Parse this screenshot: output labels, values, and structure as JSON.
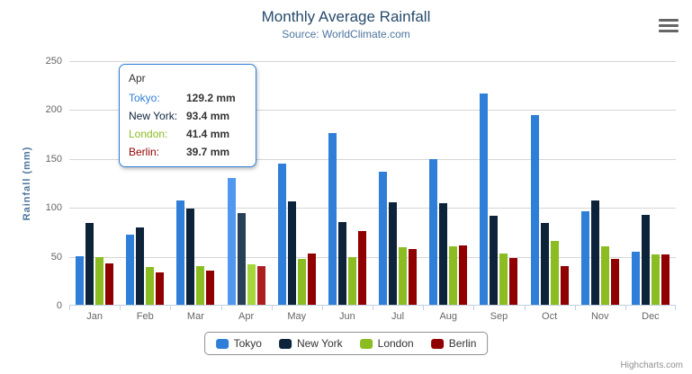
{
  "chart_data": {
    "type": "bar",
    "orientation": "vertical",
    "title": "Monthly Average Rainfall",
    "subtitle": "Source: WorldClimate.com",
    "categories": [
      "Jan",
      "Feb",
      "Mar",
      "Apr",
      "May",
      "Jun",
      "Jul",
      "Aug",
      "Sep",
      "Oct",
      "Nov",
      "Dec"
    ],
    "series": [
      {
        "name": "Tokyo",
        "color": "#2f7ed8",
        "hover_color": "#4f97ef",
        "values": [
          49.9,
          71.5,
          106.4,
          129.2,
          144.0,
          176.0,
          135.6,
          148.5,
          216.4,
          194.1,
          95.6,
          54.4
        ]
      },
      {
        "name": "New York",
        "color": "#0d233a",
        "hover_color": "#273f57",
        "values": [
          83.6,
          78.8,
          98.5,
          93.4,
          106.0,
          84.5,
          105.0,
          104.3,
          91.2,
          83.5,
          106.6,
          92.3
        ]
      },
      {
        "name": "London",
        "color": "#8bbc21",
        "hover_color": "#a6d63c",
        "values": [
          48.9,
          38.8,
          39.3,
          41.4,
          47.0,
          48.3,
          59.0,
          59.6,
          52.4,
          65.2,
          59.3,
          51.2
        ]
      },
      {
        "name": "Berlin",
        "color": "#910000",
        "hover_color": "#ad1f1f",
        "values": [
          42.4,
          33.2,
          34.5,
          39.7,
          52.6,
          75.5,
          57.4,
          60.4,
          47.6,
          39.1,
          46.8,
          51.1
        ]
      }
    ],
    "xlabel": "",
    "ylabel": "Rainfall (mm)",
    "ylim": [
      0,
      250
    ],
    "yticks": [
      0,
      50,
      100,
      150,
      200,
      250
    ],
    "grid": true,
    "legend_position": "bottom",
    "hovered_category": "Apr"
  },
  "tooltip": {
    "header": "Apr",
    "border_color": "#2f7ed8",
    "rows": [
      {
        "label": "Tokyo:",
        "value": "129.2 mm",
        "color": "#2f7ed8"
      },
      {
        "label": "New York:",
        "value": "93.4 mm",
        "color": "#0d233a"
      },
      {
        "label": "London:",
        "value": "41.4 mm",
        "color": "#8bbc21"
      },
      {
        "label": "Berlin:",
        "value": "39.7 mm",
        "color": "#910000"
      }
    ]
  },
  "credits": "Highcharts.com",
  "icons": {
    "export_menu": "hamburger-icon"
  },
  "colors": {
    "title": "#274b6d",
    "subtitle": "#4d759e",
    "axis_labels": "#666666",
    "axis_line": "#c0d0e0",
    "gridline": "#d6d6d6",
    "legend_border": "#909090"
  }
}
